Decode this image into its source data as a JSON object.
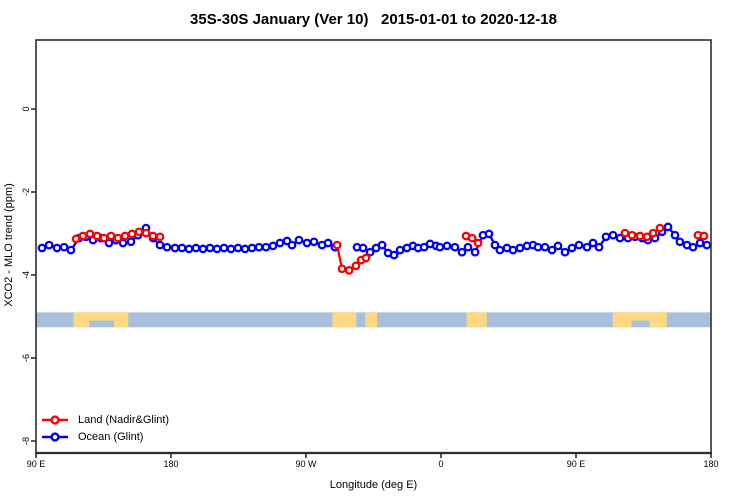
{
  "chart_data": {
    "type": "line",
    "title": "35S-30S January (Ver 10)   2015-01-01 to 2020-12-18",
    "xlabel": "Longitude (deg E)",
    "ylabel": "XCO2 - MLO trend (ppm)",
    "x_axis": {
      "min": 90,
      "max": 540,
      "ticks": [
        {
          "pos": 90,
          "label": "90 E"
        },
        {
          "pos": 180,
          "label": "180"
        },
        {
          "pos": 270,
          "label": "90 W"
        },
        {
          "pos": 360,
          "label": "0"
        },
        {
          "pos": 450,
          "label": "90 E"
        },
        {
          "pos": 540,
          "label": "180"
        }
      ]
    },
    "y_axis": {
      "min": -8.3,
      "max": 1.66,
      "ticks": [
        {
          "pos": 0,
          "label": "0"
        },
        {
          "pos": -2,
          "label": "-2"
        },
        {
          "pos": -4,
          "label": "-4"
        },
        {
          "pos": -6,
          "label": "-6"
        },
        {
          "pos": -8,
          "label": "-8"
        }
      ]
    },
    "grid": false,
    "legend_position": "bottom-left",
    "legend": [
      {
        "label": "Land (Nadir&Glint)",
        "color": "#ff0000"
      },
      {
        "label": "Ocean (Glint)",
        "color": "#0000ff"
      }
    ],
    "series": [
      {
        "name": "Ocean (Glint)",
        "color": "#0000ff",
        "segments": [
          [
            [
              94,
              -3.35
            ],
            [
              98.7,
              -3.28
            ],
            [
              104,
              -3.35
            ],
            [
              108.7,
              -3.33
            ],
            [
              113.3,
              -3.4
            ],
            [
              118.7,
              -3.11
            ],
            [
              123.3,
              -3.08
            ],
            [
              128,
              -3.16
            ],
            [
              133.3,
              -3.11
            ],
            [
              138.7,
              -3.23
            ],
            [
              143.3,
              -3.16
            ],
            [
              148,
              -3.23
            ],
            [
              153.3,
              -3.2
            ],
            [
              158,
              -3.04
            ],
            [
              163.3,
              -2.87
            ],
            [
              168,
              -3.11
            ],
            [
              172.7,
              -3.28
            ],
            [
              177.3,
              -3.33
            ],
            [
              182.7,
              -3.35
            ],
            [
              187.3,
              -3.35
            ],
            [
              192,
              -3.37
            ],
            [
              196.7,
              -3.35
            ],
            [
              201.3,
              -3.37
            ],
            [
              206,
              -3.35
            ],
            [
              210.7,
              -3.37
            ],
            [
              215.3,
              -3.35
            ],
            [
              220,
              -3.37
            ],
            [
              224.7,
              -3.35
            ],
            [
              229.3,
              -3.37
            ],
            [
              234,
              -3.35
            ],
            [
              238.7,
              -3.33
            ],
            [
              243.3,
              -3.33
            ],
            [
              248,
              -3.3
            ],
            [
              252.7,
              -3.23
            ],
            [
              257.3,
              -3.18
            ],
            [
              260.7,
              -3.28
            ],
            [
              265.3,
              -3.16
            ],
            [
              270.7,
              -3.23
            ],
            [
              275.3,
              -3.2
            ],
            [
              280.7,
              -3.28
            ],
            [
              284.7,
              -3.23
            ],
            [
              289.3,
              -3.33
            ]
          ],
          [
            [
              304,
              -3.33
            ],
            [
              308,
              -3.35
            ],
            [
              312.7,
              -3.45
            ],
            [
              316.7,
              -3.35
            ],
            [
              320.7,
              -3.28
            ],
            [
              324.7,
              -3.47
            ],
            [
              328.7,
              -3.52
            ],
            [
              332.7,
              -3.4
            ],
            [
              337.3,
              -3.35
            ],
            [
              341.3,
              -3.3
            ],
            [
              344.7,
              -3.35
            ],
            [
              348.7,
              -3.33
            ],
            [
              352.7,
              -3.25
            ],
            [
              356.7,
              -3.3
            ],
            [
              359.3,
              -3.33
            ],
            [
              364,
              -3.3
            ],
            [
              369.3,
              -3.33
            ],
            [
              374,
              -3.45
            ],
            [
              378,
              -3.33
            ],
            [
              382.7,
              -3.45
            ],
            [
              388,
              -3.04
            ],
            [
              392,
              -3.01
            ],
            [
              396,
              -3.28
            ],
            [
              399.3,
              -3.4
            ],
            [
              404,
              -3.35
            ],
            [
              408,
              -3.4
            ],
            [
              412.7,
              -3.35
            ],
            [
              417.3,
              -3.3
            ],
            [
              421.3,
              -3.28
            ],
            [
              424.7,
              -3.33
            ],
            [
              429.3,
              -3.33
            ],
            [
              434,
              -3.4
            ],
            [
              438,
              -3.3
            ],
            [
              442.7,
              -3.45
            ],
            [
              447.3,
              -3.35
            ],
            [
              452,
              -3.28
            ],
            [
              457.3,
              -3.33
            ],
            [
              461.3,
              -3.23
            ],
            [
              465.3,
              -3.33
            ],
            [
              470,
              -3.08
            ],
            [
              474.7,
              -3.04
            ],
            [
              479.3,
              -3.11
            ],
            [
              484.7,
              -3.11
            ],
            [
              489.3,
              -3.08
            ],
            [
              494,
              -3.11
            ],
            [
              498,
              -3.16
            ],
            [
              502.7,
              -3.11
            ],
            [
              507.3,
              -2.96
            ],
            [
              511.3,
              -2.84
            ],
            [
              516,
              -3.04
            ],
            [
              519.3,
              -3.2
            ],
            [
              524,
              -3.28
            ],
            [
              528,
              -3.33
            ],
            [
              532.7,
              -3.23
            ],
            [
              537.3,
              -3.28
            ]
          ]
        ]
      },
      {
        "name": "Land (Nadir&Glint)",
        "color": "#ff0000",
        "segments": [
          [
            [
              116.7,
              -3.13
            ],
            [
              121.3,
              -3.06
            ],
            [
              126,
              -3.01
            ],
            [
              130.7,
              -3.06
            ],
            [
              135.3,
              -3.11
            ],
            [
              140,
              -3.06
            ],
            [
              144.7,
              -3.11
            ],
            [
              149.3,
              -3.06
            ],
            [
              154,
              -3.01
            ],
            [
              158.7,
              -2.96
            ],
            [
              163.3,
              -2.99
            ],
            [
              168,
              -3.06
            ],
            [
              172.7,
              -3.08
            ]
          ],
          [
            [
              290.7,
              -3.28
            ],
            [
              294,
              -3.85
            ],
            [
              298.7,
              -3.89
            ],
            [
              303.3,
              -3.78
            ],
            [
              306.7,
              -3.64
            ],
            [
              310,
              -3.59
            ]
          ],
          [
            [
              376.7,
              -3.06
            ],
            [
              380.7,
              -3.11
            ],
            [
              384.7,
              -3.23
            ]
          ],
          [
            [
              482.7,
              -2.99
            ],
            [
              487.3,
              -3.04
            ],
            [
              492.7,
              -3.06
            ],
            [
              497.3,
              -3.08
            ],
            [
              501.3,
              -2.99
            ],
            [
              506,
              -2.87
            ]
          ],
          [
            [
              531.3,
              -3.04
            ],
            [
              535.3,
              -3.06
            ]
          ]
        ]
      }
    ],
    "land_ocean_band": {
      "description": "land/ocean strip along longitude",
      "ocean_color": "#a8c0dd",
      "land_color": "#fbd882",
      "value_top": -4.9,
      "value_bottom": -5.26,
      "patches": [
        {
          "from": 115,
          "to": 125.5,
          "part": "full"
        },
        {
          "from": 125.5,
          "to": 142,
          "part": "top"
        },
        {
          "from": 142,
          "to": 151.5,
          "part": "full"
        },
        {
          "from": 287.5,
          "to": 303.5,
          "part": "full"
        },
        {
          "from": 309.5,
          "to": 317.5,
          "part": "full"
        },
        {
          "from": 377,
          "to": 390.5,
          "part": "full"
        },
        {
          "from": 474.5,
          "to": 487,
          "part": "full"
        },
        {
          "from": 487,
          "to": 499,
          "part": "top"
        },
        {
          "from": 499,
          "to": 510.5,
          "part": "full"
        }
      ]
    },
    "axis_color": "#2e2e2e",
    "marker": {
      "shape": "open-circle",
      "fill": "#ffffff"
    }
  }
}
